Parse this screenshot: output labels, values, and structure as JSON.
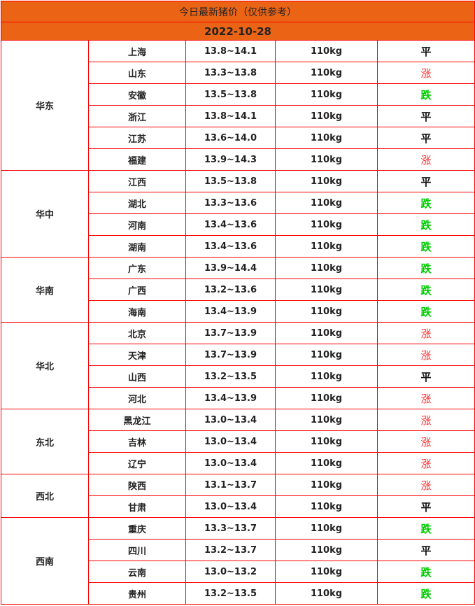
{
  "title": "今日最新猪价（仅供参考）",
  "date": "2022-10-28",
  "colors": {
    "header_bg": "#EB6415",
    "border": "#FF0000",
    "up": "#FF2A2A",
    "down": "#00CC00",
    "flat": "#111111"
  },
  "regions": [
    {
      "name": "华东",
      "rows": [
        {
          "province": "上海",
          "price": "13.8~14.1",
          "weight": "110kg",
          "trend": "平"
        },
        {
          "province": "山东",
          "price": "13.3~13.8",
          "weight": "110kg",
          "trend": "涨"
        },
        {
          "province": "安徽",
          "price": "13.5~13.8",
          "weight": "110kg",
          "trend": "跌"
        },
        {
          "province": "浙江",
          "price": "13.8~14.1",
          "weight": "110kg",
          "trend": "平"
        },
        {
          "province": "江苏",
          "price": "13.6~14.0",
          "weight": "110kg",
          "trend": "平"
        },
        {
          "province": "福建",
          "price": "13.9~14.3",
          "weight": "110kg",
          "trend": "涨"
        }
      ]
    },
    {
      "name": "华中",
      "rows": [
        {
          "province": "江西",
          "price": "13.5~13.8",
          "weight": "110kg",
          "trend": "平"
        },
        {
          "province": "湖北",
          "price": "13.3~13.6",
          "weight": "110kg",
          "trend": "跌"
        },
        {
          "province": "河南",
          "price": "13.4~13.6",
          "weight": "110kg",
          "trend": "跌"
        },
        {
          "province": "湖南",
          "price": "13.4~13.6",
          "weight": "110kg",
          "trend": "跌"
        }
      ]
    },
    {
      "name": "华南",
      "rows": [
        {
          "province": "广东",
          "price": "13.9~14.4",
          "weight": "110kg",
          "trend": "跌"
        },
        {
          "province": "广西",
          "price": "13.2~13.6",
          "weight": "110kg",
          "trend": "跌"
        },
        {
          "province": "海南",
          "price": "13.4~13.9",
          "weight": "110kg",
          "trend": "跌"
        }
      ]
    },
    {
      "name": "华北",
      "rows": [
        {
          "province": "北京",
          "price": "13.7~13.9",
          "weight": "110kg",
          "trend": "涨"
        },
        {
          "province": "天津",
          "price": "13.7~13.9",
          "weight": "110kg",
          "trend": "涨"
        },
        {
          "province": "山西",
          "price": "13.2~13.5",
          "weight": "110kg",
          "trend": "平"
        },
        {
          "province": "河北",
          "price": "13.4~13.9",
          "weight": "110kg",
          "trend": "涨"
        }
      ]
    },
    {
      "name": "东北",
      "rows": [
        {
          "province": "黑龙江",
          "price": "13.0~13.4",
          "weight": "110kg",
          "trend": "涨"
        },
        {
          "province": "吉林",
          "price": "13.0~13.4",
          "weight": "110kg",
          "trend": "涨"
        },
        {
          "province": "辽宁",
          "price": "13.0~13.4",
          "weight": "110kg",
          "trend": "涨"
        }
      ]
    },
    {
      "name": "西北",
      "rows": [
        {
          "province": "陕西",
          "price": "13.1~13.7",
          "weight": "110kg",
          "trend": "涨"
        },
        {
          "province": "甘肃",
          "price": "13.0~13.4",
          "weight": "110kg",
          "trend": "平"
        }
      ]
    },
    {
      "name": "西南",
      "rows": [
        {
          "province": "重庆",
          "price": "13.3~13.7",
          "weight": "110kg",
          "trend": "跌"
        },
        {
          "province": "四川",
          "price": "13.2~13.7",
          "weight": "110kg",
          "trend": "平"
        },
        {
          "province": "云南",
          "price": "13.0~13.2",
          "weight": "110kg",
          "trend": "跌"
        },
        {
          "province": "贵州",
          "price": "13.2~13.5",
          "weight": "110kg",
          "trend": "跌"
        }
      ]
    }
  ]
}
